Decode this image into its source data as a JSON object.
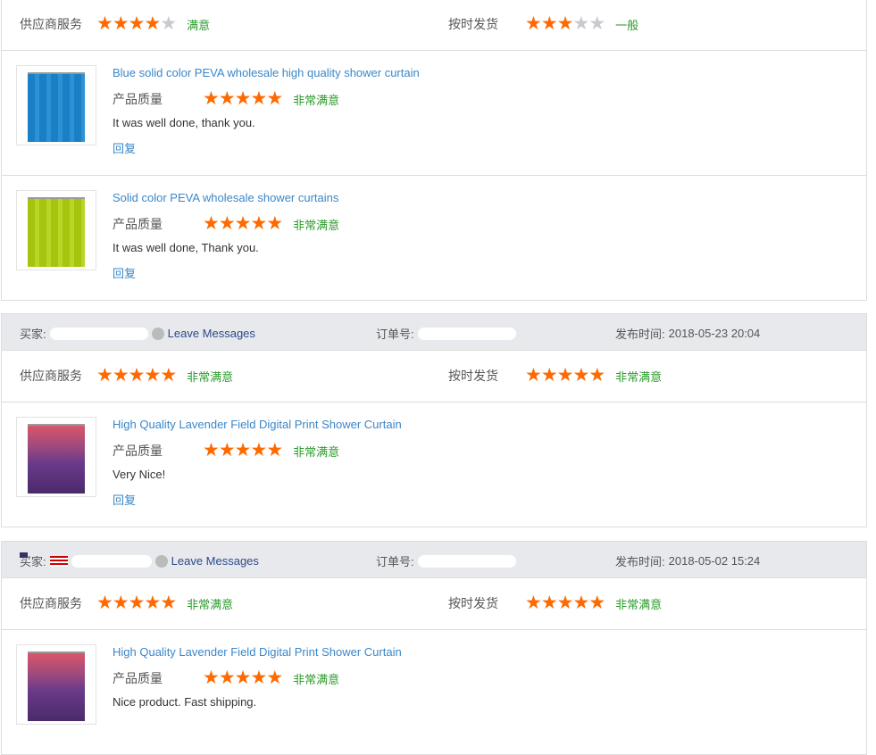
{
  "labels": {
    "supplier_service": "供应商服务",
    "on_time": "按时发货",
    "product_quality": "产品质量",
    "buyer": "买家:",
    "order_no": "订单号:",
    "published": "发布时间:",
    "leave_messages": "Leave Messages",
    "reply": "回复"
  },
  "colors": {
    "star": "#ff6a00",
    "star_off": "#c8cad0",
    "satisfaction": "#2a9b2a",
    "link": "#3a87c8",
    "header_bg": "#e8e9ed"
  },
  "reviews": [
    {
      "supplier_stars": 4,
      "supplier_text": "满意",
      "ontime_stars": 3,
      "ontime_text": "一般",
      "items": [
        {
          "title": "Blue solid color PEVA wholesale high quality shower curtain",
          "stars": 5,
          "rating_text": "非常满意",
          "comment": "It was well done, thank you.",
          "image": "blue-curtain"
        },
        {
          "title": "Solid color PEVA wholesale shower curtains",
          "stars": 5,
          "rating_text": "非常满意",
          "comment": "It was well done, Thank you.",
          "image": "green-curtain"
        }
      ]
    },
    {
      "published": "2018-05-23 20:04",
      "supplier_stars": 5,
      "supplier_text": "非常满意",
      "ontime_stars": 5,
      "ontime_text": "非常满意",
      "items": [
        {
          "title": "High Quality Lavender Field Digital Print Shower Curtain",
          "stars": 5,
          "rating_text": "非常满意",
          "comment": "Very Nice!",
          "image": "lavender-curtain"
        }
      ]
    },
    {
      "published": "2018-05-02 15:24",
      "flag": "us-flag",
      "supplier_stars": 5,
      "supplier_text": "非常满意",
      "ontime_stars": 5,
      "ontime_text": "非常满意",
      "items": [
        {
          "title": "High Quality Lavender Field Digital Print Shower Curtain",
          "stars": 5,
          "rating_text": "非常满意",
          "comment": "Nice product. Fast shipping.",
          "image": "lavender-curtain"
        }
      ]
    }
  ]
}
